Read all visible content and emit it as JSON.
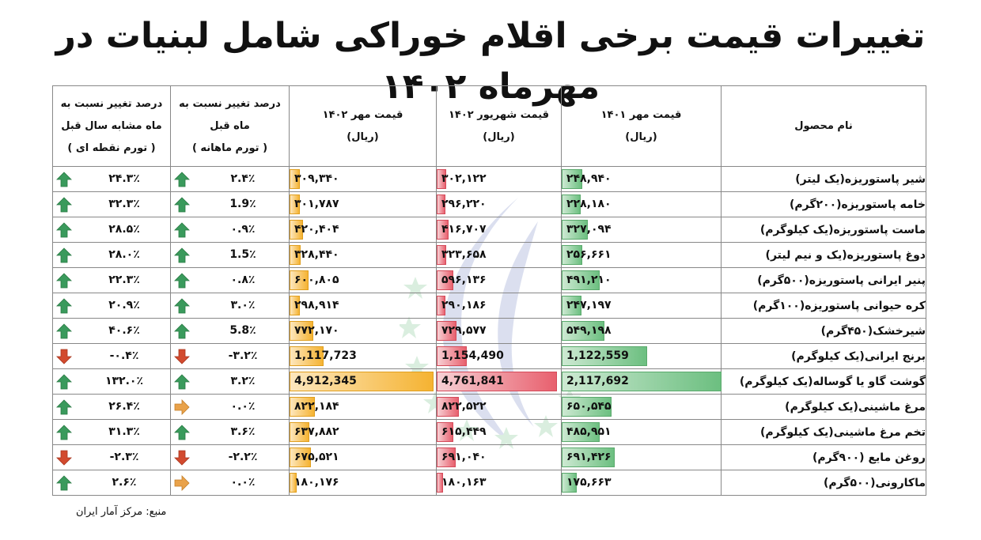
{
  "title": "تغییرات قیمت برخی اقلام خوراکی شامل لبنیات در مهرماه ۱۴۰۲",
  "headers": {
    "product": "نام محصول",
    "mehr1401": [
      "قیمت مهر ۱۴۰۱",
      "(ریال)"
    ],
    "shahrivar1402": [
      "قیمت شهریور ۱۴۰۲",
      "(ریال)"
    ],
    "mehr1402": [
      "قیمت مهر ۱۴۰۲",
      "(ریال)"
    ],
    "monthly": [
      "درصد تغییر نسبت به",
      "ماه قبل",
      "( تورم ماهانه )"
    ],
    "yearly": [
      "درصد تغییر نسبت به",
      "ماه مشابه سال قبل",
      "( تورم نقطه ای )"
    ]
  },
  "colors": {
    "green": "#6cbf80",
    "red": "#e8606e",
    "orange": "#f5b332",
    "up_arrow": "#3a9a5c",
    "down_arrow": "#d24a2e",
    "flat_arrow": "#e9a24a"
  },
  "rows": [
    {
      "name": "شیر پاستوریزه(یک لیتر)",
      "p1401": "۲۴۸,۹۴۰",
      "v1401": 248940,
      "p_shahrivar": "۳۰۲,۱۲۲",
      "v_shahrivar": 302122,
      "p1402": "۳۰۹,۳۴۰",
      "v1402": 309340,
      "monthly": "۲.۴٪",
      "monthly_dir": "up-arrow-icon",
      "yearly": "۲۴.۳٪",
      "yearly_dir": "up-arrow-icon"
    },
    {
      "name": "خامه پاستوریزه(۲۰۰گرم)",
      "p1401": "۲۲۸,۱۸۰",
      "v1401": 228180,
      "p_shahrivar": "۲۹۶,۲۲۰",
      "v_shahrivar": 296220,
      "p1402": "۳۰۱,۷۸۷",
      "v1402": 301787,
      "monthly": "1.9٪",
      "monthly_dir": "up-arrow-icon",
      "yearly": "۳۲.۳٪",
      "yearly_dir": "up-arrow-icon"
    },
    {
      "name": "ماست پاستوریزه(یک کیلوگرم)",
      "p1401": "۳۲۷,۰۹۴",
      "v1401": 327094,
      "p_shahrivar": "۴۱۶,۷۰۷",
      "v_shahrivar": 416707,
      "p1402": "۴۲۰,۴۰۴",
      "v1402": 420404,
      "monthly": "۰.۹٪",
      "monthly_dir": "up-arrow-icon",
      "yearly": "۲۸.۵٪",
      "yearly_dir": "up-arrow-icon"
    },
    {
      "name": "دوغ پاستوریزه(یک و نیم لیتر)",
      "p1401": "۲۵۶,۶۶۱",
      "v1401": 256661,
      "p_shahrivar": "۳۲۳,۶۵۸",
      "v_shahrivar": 323658,
      "p1402": "۳۲۸,۴۴۰",
      "v1402": 328440,
      "monthly": "1.5٪",
      "monthly_dir": "up-arrow-icon",
      "yearly": "۲۸.۰٪",
      "yearly_dir": "up-arrow-icon"
    },
    {
      "name": "پنیر ایرانی پاستوریزه(۵۰۰گرم)",
      "p1401": "۴۹۱,۲۱۰",
      "v1401": 491210,
      "p_shahrivar": "۵۹۶,۱۳۶",
      "v_shahrivar": 596136,
      "p1402": "۶۰۰,۸۰۵",
      "v1402": 600805,
      "monthly": "۰.۸٪",
      "monthly_dir": "up-arrow-icon",
      "yearly": "۲۲.۳٪",
      "yearly_dir": "up-arrow-icon"
    },
    {
      "name": "کره حیوانی پاستوریزه(۱۰۰گرم)",
      "p1401": "۲۴۷,۱۹۷",
      "v1401": 247197,
      "p_shahrivar": "۲۹۰,۱۸۶",
      "v_shahrivar": 290186,
      "p1402": "۲۹۸,۹۱۴",
      "v1402": 298914,
      "monthly": "۳.۰٪",
      "monthly_dir": "up-arrow-icon",
      "yearly": "۲۰.۹٪",
      "yearly_dir": "up-arrow-icon"
    },
    {
      "name": "شیرخشک(۴۵۰گرم)",
      "p1401": "۵۴۹,۱۹۸",
      "v1401": 549198,
      "p_shahrivar": "۷۲۹,۵۷۷",
      "v_shahrivar": 729577,
      "p1402": "۷۷۲,۱۷۰",
      "v1402": 772170,
      "monthly": "5.8٪",
      "monthly_dir": "up-arrow-icon",
      "yearly": "۴۰.۶٪",
      "yearly_dir": "up-arrow-icon"
    },
    {
      "name": "برنج ایرانی(یک کیلوگرم)",
      "p1401": "1,122,559",
      "v1401": 1122559,
      "p_shahrivar": "1,154,490",
      "v_shahrivar": 1154490,
      "p1402": "1,117,723",
      "v1402": 1117723,
      "monthly": "-۳.۲٪",
      "monthly_dir": "down-arrow-icon",
      "yearly": "-۰.۴٪",
      "yearly_dir": "down-arrow-icon"
    },
    {
      "name": "گوشت گاو یا گوساله(یک کیلوگرم)",
      "p1401": "2,117,692",
      "v1401": 2117692,
      "p_shahrivar": "4,761,841",
      "v_shahrivar": 4761841,
      "p1402": "4,912,345",
      "v1402": 4912345,
      "monthly": "۳.۲٪",
      "monthly_dir": "up-arrow-icon",
      "yearly": "۱۳۲.۰٪",
      "yearly_dir": "up-arrow-icon"
    },
    {
      "name": "مرغ ماشینی(یک کیلوگرم)",
      "p1401": "۶۵۰,۵۴۵",
      "v1401": 650545,
      "p_shahrivar": "۸۲۲,۵۲۲",
      "v_shahrivar": 822522,
      "p1402": "۸۲۲,۱۸۴",
      "v1402": 822184,
      "monthly": "۰.۰٪",
      "monthly_dir": "right-arrow-icon",
      "yearly": "۲۶.۴٪",
      "yearly_dir": "up-arrow-icon"
    },
    {
      "name": "تخم مرغ ماشینی(یک کیلوگرم)",
      "p1401": "۴۸۵,۹۵۱",
      "v1401": 485951,
      "p_shahrivar": "۶۱۵,۴۴۹",
      "v_shahrivar": 615449,
      "p1402": "۶۳۷,۸۸۲",
      "v1402": 637882,
      "monthly": "۳.۶٪",
      "monthly_dir": "up-arrow-icon",
      "yearly": "۳۱.۳٪",
      "yearly_dir": "up-arrow-icon"
    },
    {
      "name": "روغن مایع (۹۰۰گرم)",
      "p1401": "۶۹۱,۴۲۶",
      "v1401": 691426,
      "p_shahrivar": "۶۹۱,۰۴۰",
      "v_shahrivar": 691040,
      "p1402": "۶۷۵,۵۲۱",
      "v1402": 675521,
      "monthly": "-۲.۲٪",
      "monthly_dir": "down-arrow-icon",
      "yearly": "-۲.۳٪",
      "yearly_dir": "down-arrow-icon"
    },
    {
      "name": "ماکارونی(۵۰۰گرم)",
      "p1401": "۱۷۵,۶۶۳",
      "v1401": 175663,
      "p_shahrivar": "۱۸۰,۱۶۳",
      "v_shahrivar": 180163,
      "p1402": "۱۸۰,۱۷۶",
      "v1402": 180176,
      "monthly": "۰.۰٪",
      "monthly_dir": "right-arrow-icon",
      "yearly": "۲.۶٪",
      "yearly_dir": "up-arrow-icon"
    }
  ],
  "source": "منبع: مرکز آمار ایران"
}
